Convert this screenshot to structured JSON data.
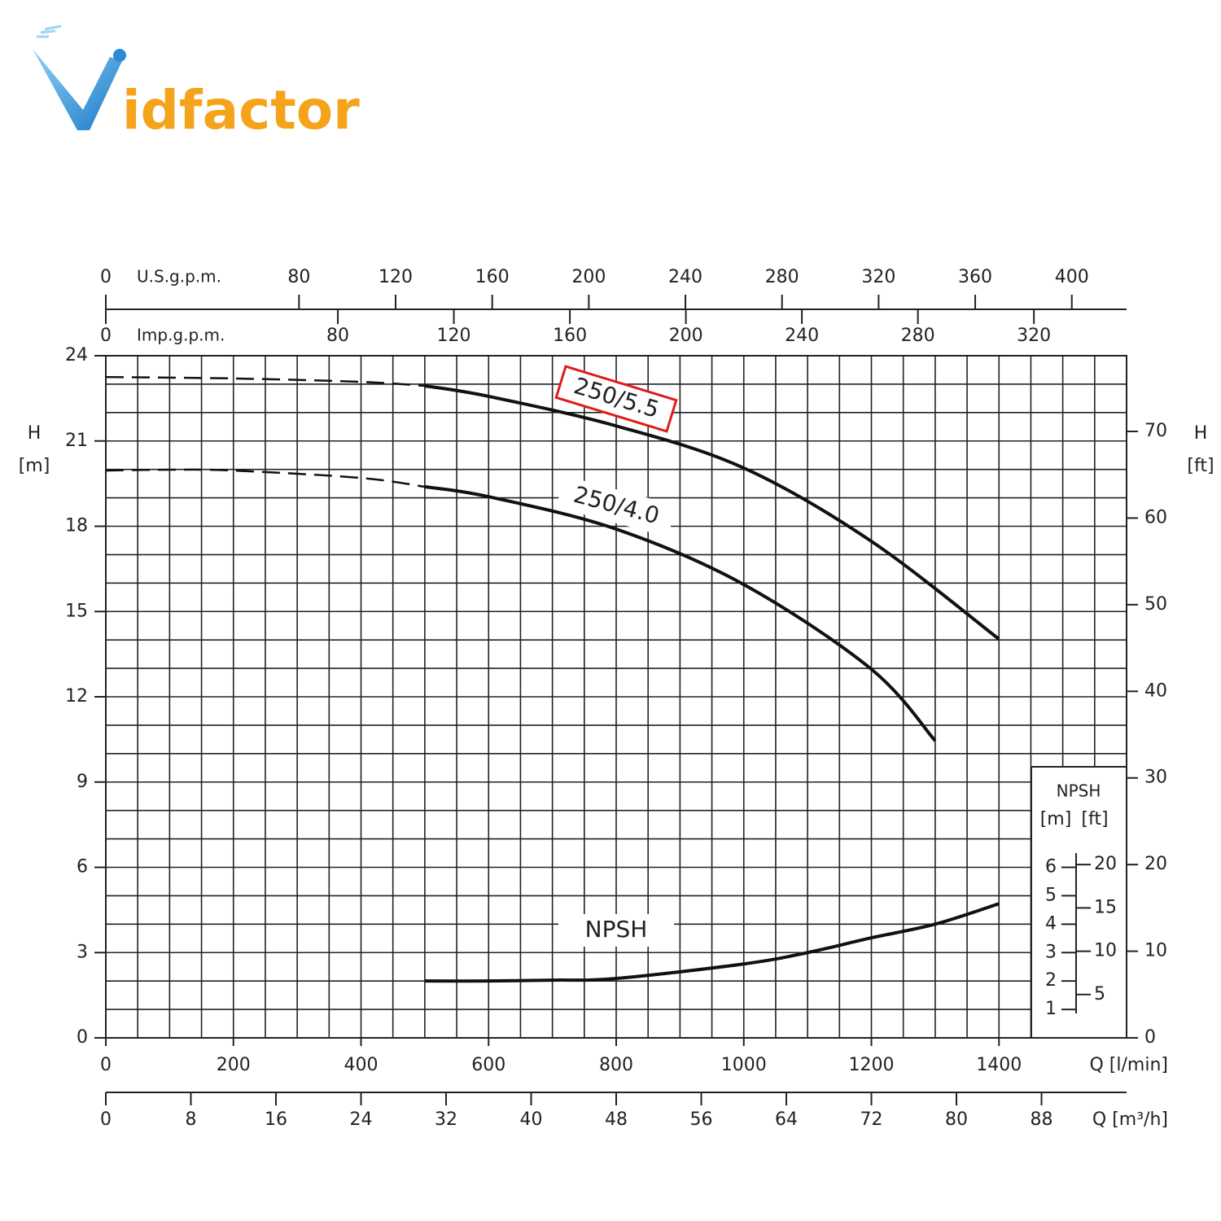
{
  "logo": "idfactor",
  "chart_data": {
    "type": "line",
    "xlabel": "Q [l/min]",
    "xlim": [
      0,
      1600
    ],
    "xticks": [
      0,
      200,
      400,
      600,
      800,
      1000,
      1200,
      1400
    ],
    "ylabel": "H",
    "ylabel_unit": "[m]",
    "ylim": [
      0,
      24
    ],
    "yticks": [
      0,
      3,
      6,
      9,
      12,
      15,
      18,
      21,
      24
    ],
    "y2label": "H",
    "y2label_unit": "[ft]",
    "y2lim": [
      0,
      78.74
    ],
    "y2ticks": [
      0,
      10,
      20,
      30,
      40,
      50,
      60,
      70
    ],
    "x2label": "Q [m³/h]",
    "x2lim": [
      0,
      96
    ],
    "x2ticks": [
      0,
      8,
      16,
      24,
      32,
      40,
      48,
      56,
      64,
      72,
      80,
      88
    ],
    "x3label": "U.S.g.p.m.",
    "x3lim": [
      0,
      422.68
    ],
    "x3ticks": [
      0,
      80,
      120,
      160,
      200,
      240,
      280,
      320,
      360,
      400
    ],
    "x4label": "Imp.g.p.m.",
    "x4lim": [
      0,
      351.95
    ],
    "x4ticks": [
      0,
      80,
      120,
      160,
      200,
      240,
      280,
      320
    ],
    "grid": true,
    "grid_x_step": 50,
    "grid_y_step": 1,
    "series": [
      {
        "name": "250/5.5",
        "color": "#111111",
        "dash_to": 500,
        "highlight": "#e01b1b",
        "x": [
          0,
          200,
          400,
          500,
          600,
          800,
          1000,
          1200,
          1400
        ],
        "values": [
          23.25,
          23.2,
          23.08,
          22.94,
          22.57,
          21.53,
          20.05,
          17.47,
          14.03
        ]
      },
      {
        "name": "250/4.0",
        "color": "#111111",
        "dash_to": 500,
        "x": [
          0,
          100,
          200,
          400,
          500,
          600,
          800,
          1000,
          1200,
          1300
        ],
        "values": [
          19.96,
          19.99,
          19.96,
          19.7,
          19.39,
          19.04,
          17.9,
          15.95,
          12.97,
          10.45
        ]
      },
      {
        "name": "NPSH",
        "color": "#111111",
        "x": [
          500,
          600,
          700,
          800,
          1000,
          1100,
          1200,
          1300,
          1400
        ],
        "values": [
          2.0,
          2.0,
          2.03,
          2.09,
          2.6,
          3.0,
          3.52,
          4.0,
          4.72
        ]
      }
    ],
    "npsh_axis": {
      "title": "NPSH",
      "unit_m": "[m]",
      "unit_ft": "[ft]",
      "mticks": [
        1,
        2,
        3,
        4,
        5,
        6
      ],
      "ftticks": [
        5,
        10,
        15,
        20
      ]
    }
  }
}
